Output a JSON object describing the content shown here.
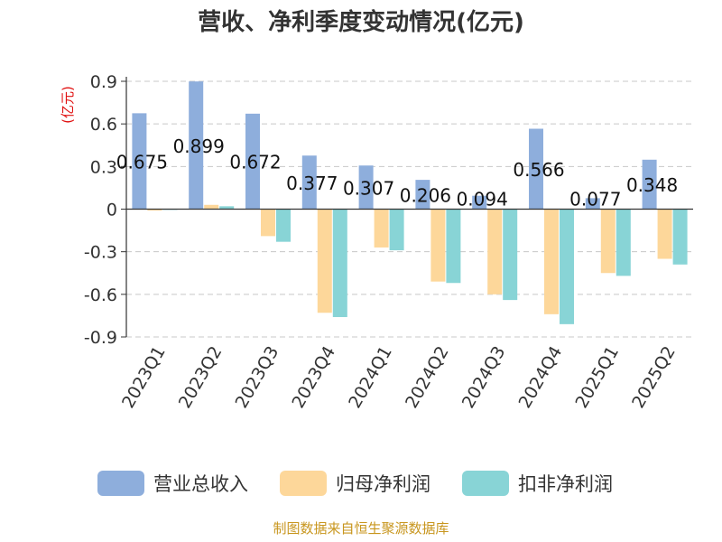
{
  "chart_data": {
    "type": "bar",
    "title": "营收、净利季度变动情况(亿元)",
    "ylabel": "(亿元)",
    "categories": [
      "2023Q1",
      "2023Q2",
      "2023Q3",
      "2023Q4",
      "2024Q1",
      "2024Q2",
      "2024Q3",
      "2024Q4",
      "2025Q1",
      "2025Q2"
    ],
    "ylim": [
      -0.9,
      0.9
    ],
    "yticks": [
      "0.9",
      "0.6",
      "0.3",
      "0",
      "-0.3",
      "-0.6",
      "-0.9"
    ],
    "grid": true,
    "legend_position": "bottom",
    "series": [
      {
        "name": "营业总收入",
        "color": "#8eaedc",
        "values": [
          0.675,
          0.899,
          0.672,
          0.377,
          0.307,
          0.206,
          0.094,
          0.566,
          0.077,
          0.348
        ],
        "labels": [
          "0.675",
          "0.899",
          "0.672",
          "0.377",
          "0.307",
          "0.206",
          "0.094",
          "0.566",
          "0.077",
          "0.348"
        ]
      },
      {
        "name": "归母净利润",
        "color": "#fdd79a",
        "values": [
          -0.01,
          0.03,
          -0.19,
          -0.73,
          -0.27,
          -0.51,
          -0.6,
          -0.74,
          -0.45,
          -0.35
        ]
      },
      {
        "name": "扣非净利润",
        "color": "#88d4d6",
        "values": [
          -0.005,
          0.02,
          -0.23,
          -0.76,
          -0.29,
          -0.52,
          -0.64,
          -0.81,
          -0.47,
          -0.39
        ]
      }
    ]
  },
  "footer": {
    "source": "制图数据来自恒生聚源数据库"
  }
}
